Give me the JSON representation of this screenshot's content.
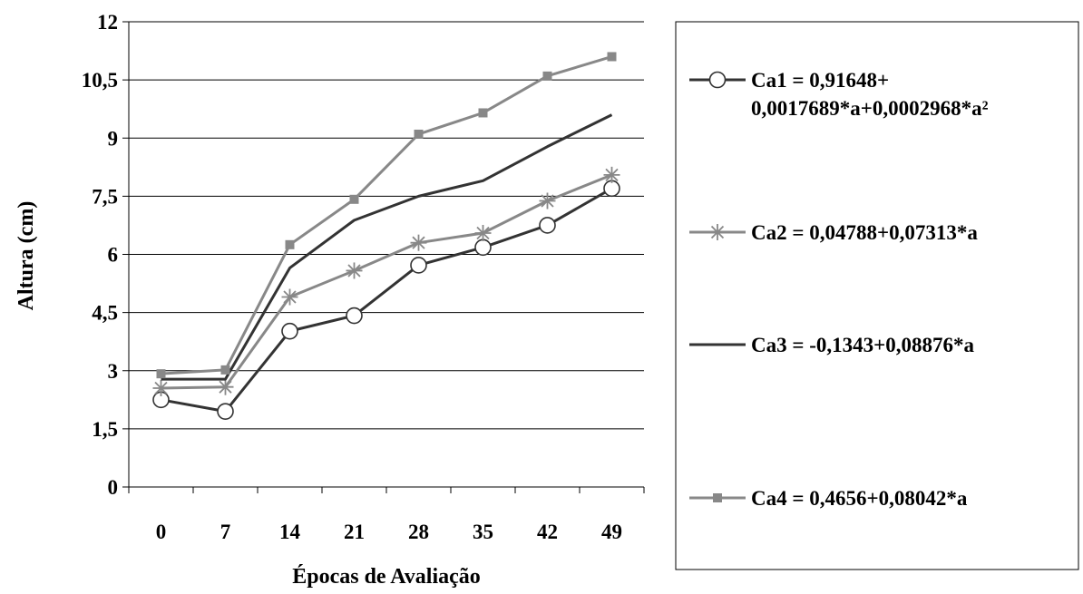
{
  "chart_data": {
    "type": "line",
    "categories": [
      "0",
      "7",
      "14",
      "21",
      "28",
      "35",
      "42",
      "49"
    ],
    "xlabel": "Épocas de Avaliação",
    "ylabel": "Altura (cm)",
    "ylim": [
      0,
      12
    ],
    "yticks": [
      "0",
      "1,5",
      "3",
      "4,5",
      "6",
      "7,5",
      "9",
      "10,5",
      "12"
    ],
    "grid": "horizontal",
    "legend_position": "right",
    "series": [
      {
        "name_lines": [
          "Ca1 = 0,91648+",
          "0,0017689*a+0,0002968*a²"
        ],
        "marker": "circle",
        "color": "#333333",
        "values": [
          2.25,
          1.95,
          4.02,
          4.42,
          5.72,
          6.18,
          6.75,
          7.7
        ]
      },
      {
        "name_lines": [
          "Ca2 = 0,04788+0,07313*a"
        ],
        "marker": "star",
        "color": "#888888",
        "values": [
          2.55,
          2.58,
          4.9,
          5.58,
          6.3,
          6.55,
          7.38,
          8.05
        ]
      },
      {
        "name_lines": [
          "Ca3 = -0,1343+0,08876*a"
        ],
        "marker": "none",
        "color": "#333333",
        "values": [
          2.78,
          2.78,
          5.65,
          6.88,
          7.5,
          7.9,
          8.78,
          9.6
        ]
      },
      {
        "name_lines": [
          "Ca4 = 0,4656+0,08042*a"
        ],
        "marker": "square",
        "color": "#888888",
        "values": [
          2.92,
          3.02,
          6.25,
          7.42,
          9.1,
          9.65,
          10.6,
          11.1
        ]
      }
    ]
  }
}
